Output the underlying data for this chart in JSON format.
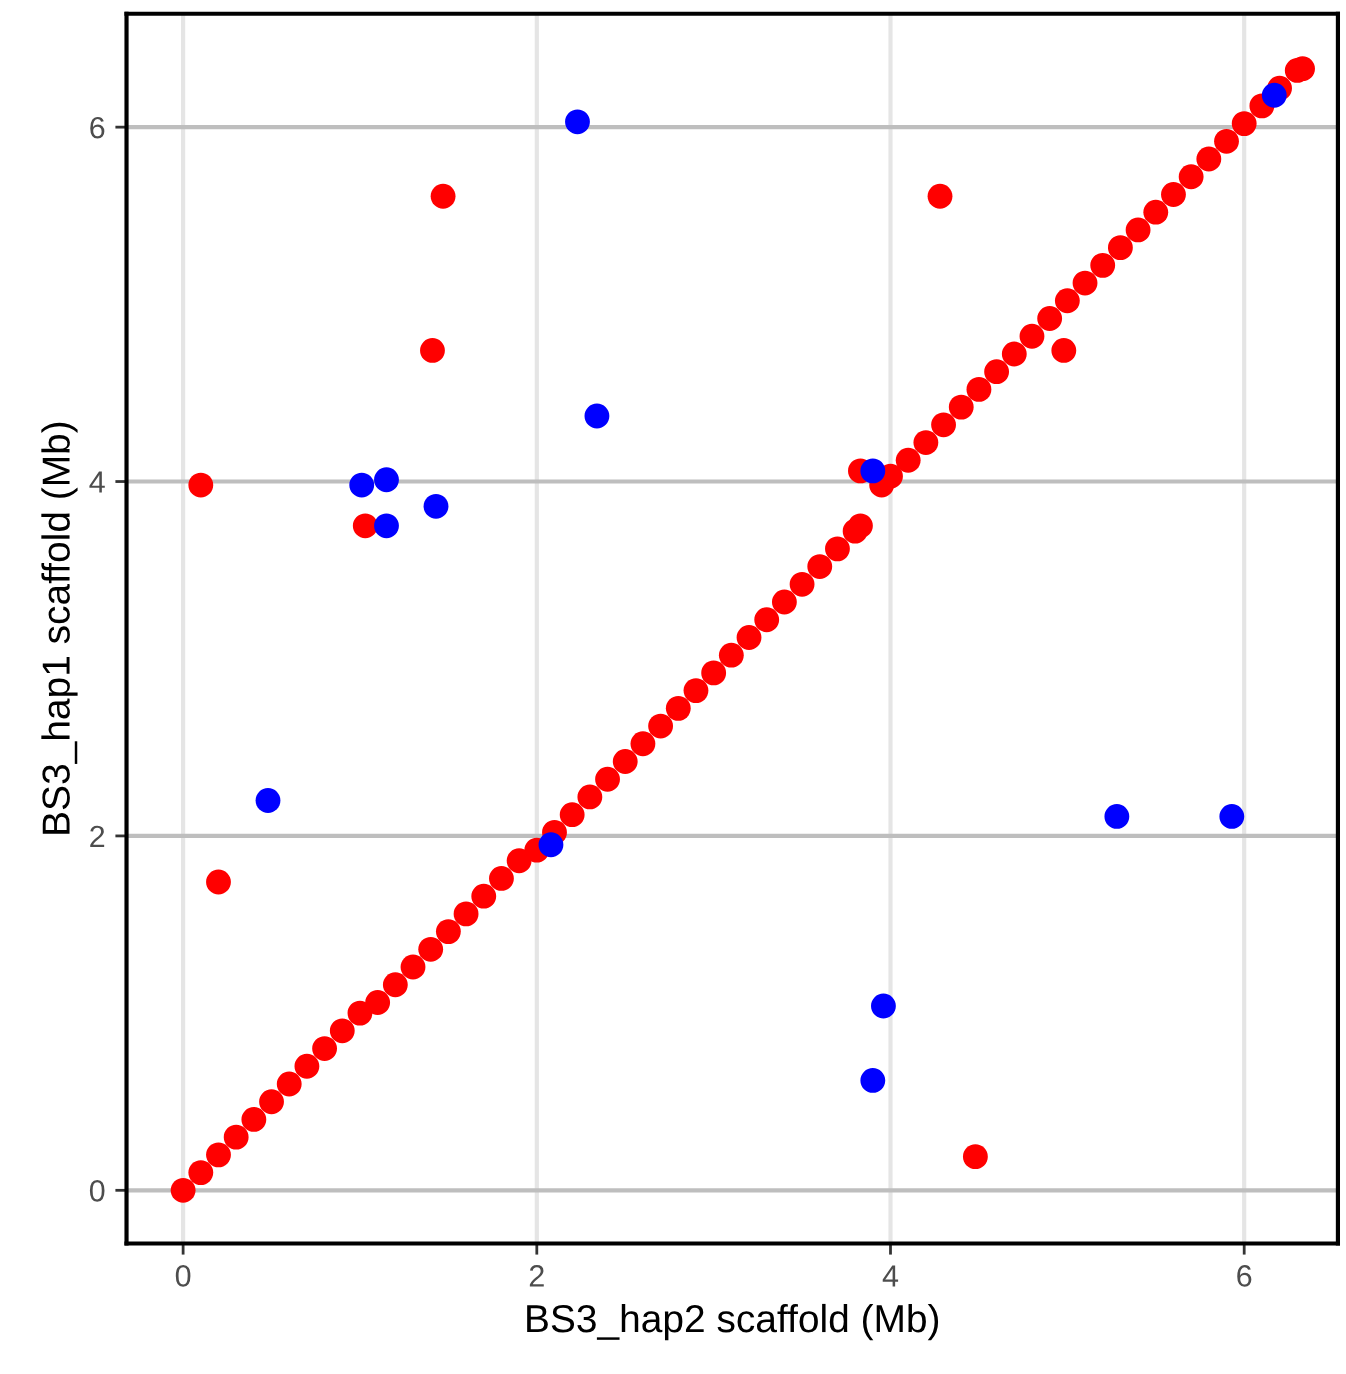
{
  "chart_data": {
    "type": "scatter",
    "xlabel": "BS3_hap2 scaffold (Mb)",
    "ylabel": "BS3_hap1 scaffold (Mb)",
    "xlim": [
      -0.32,
      6.53
    ],
    "ylim": [
      -0.3,
      6.64
    ],
    "xticks": [
      0,
      2,
      4,
      6
    ],
    "yticks": [
      0,
      2,
      4,
      6
    ],
    "grid": true,
    "marker": "circle",
    "series": [
      {
        "color": "#ff0000",
        "x": [
          0,
          0.1,
          0.2,
          0.3,
          0.4,
          0.5,
          0.6,
          0.7,
          0.8,
          0.9,
          1.0,
          1.1,
          1.2,
          1.3,
          1.4,
          1.5,
          1.6,
          1.7,
          1.8,
          1.9,
          2.0,
          2.1,
          2.2,
          2.3,
          2.4,
          2.5,
          2.6,
          2.7,
          2.8,
          2.9,
          3.0,
          3.1,
          3.2,
          3.3,
          3.4,
          3.5,
          3.6,
          3.7,
          3.8,
          3.83,
          3.95,
          4.0,
          4.1,
          4.2,
          4.3,
          4.4,
          4.5,
          4.6,
          4.7,
          4.8,
          4.9,
          5.0,
          5.1,
          5.2,
          5.3,
          5.4,
          5.5,
          5.6,
          5.7,
          5.8,
          5.9,
          6.0,
          6.1,
          6.2,
          6.3,
          6.33,
          0.1,
          1.41,
          1.47,
          1.03,
          0.2,
          4.28,
          4.98,
          4.48,
          3.83
        ],
        "values": [
          0,
          0.1,
          0.2,
          0.3,
          0.4,
          0.5,
          0.6,
          0.7,
          0.8,
          0.9,
          1.0,
          1.06,
          1.16,
          1.26,
          1.36,
          1.46,
          1.56,
          1.66,
          1.76,
          1.86,
          1.92,
          2.02,
          2.12,
          2.22,
          2.32,
          2.42,
          2.52,
          2.62,
          2.72,
          2.82,
          2.92,
          3.02,
          3.12,
          3.22,
          3.32,
          3.42,
          3.52,
          3.62,
          3.72,
          3.75,
          3.98,
          4.03,
          4.12,
          4.22,
          4.32,
          4.42,
          4.52,
          4.62,
          4.72,
          4.82,
          4.92,
          5.02,
          5.12,
          5.22,
          5.32,
          5.42,
          5.52,
          5.62,
          5.72,
          5.82,
          5.92,
          6.02,
          6.12,
          6.22,
          6.32,
          6.33,
          3.98,
          4.74,
          5.61,
          3.75,
          1.74,
          5.61,
          4.74,
          0.19,
          4.06
        ]
      },
      {
        "color": "#0000ff",
        "x": [
          2.23,
          2.34,
          1.01,
          1.15,
          1.15,
          1.43,
          0.48,
          2.08,
          3.9,
          6.17,
          5.28,
          5.93,
          3.96,
          3.9
        ],
        "values": [
          6.03,
          4.37,
          3.98,
          4.01,
          3.75,
          3.86,
          2.2,
          1.95,
          4.06,
          6.18,
          2.11,
          2.11,
          1.04,
          0.62
        ]
      }
    ]
  }
}
